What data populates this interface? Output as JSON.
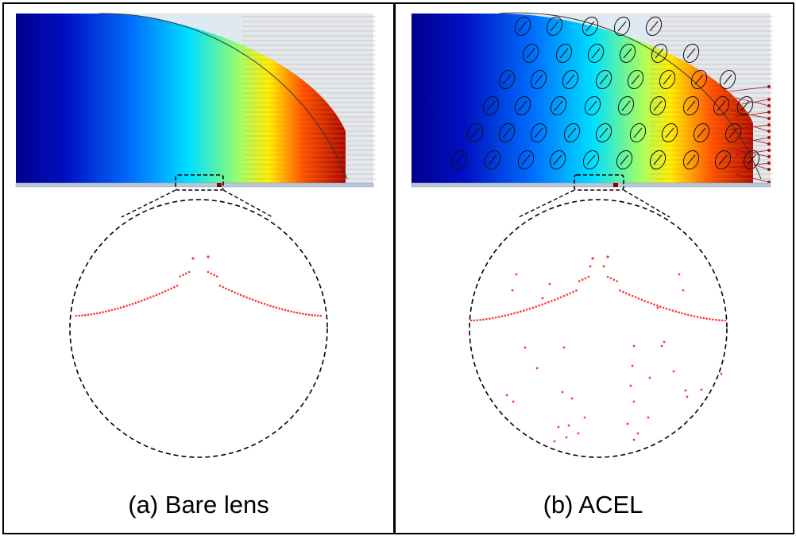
{
  "panels": [
    {
      "id": "a",
      "caption": "(a) Bare lens"
    },
    {
      "id": "b",
      "caption": "(b) ACEL"
    }
  ],
  "colors": {
    "frame": "#000000",
    "zoom_outline": "#000000",
    "focal_dots": "#ff3333",
    "colormap": [
      "#00008f",
      "#0050ff",
      "#00e0ff",
      "#fff000",
      "#ff3000",
      "#a00000"
    ]
  }
}
